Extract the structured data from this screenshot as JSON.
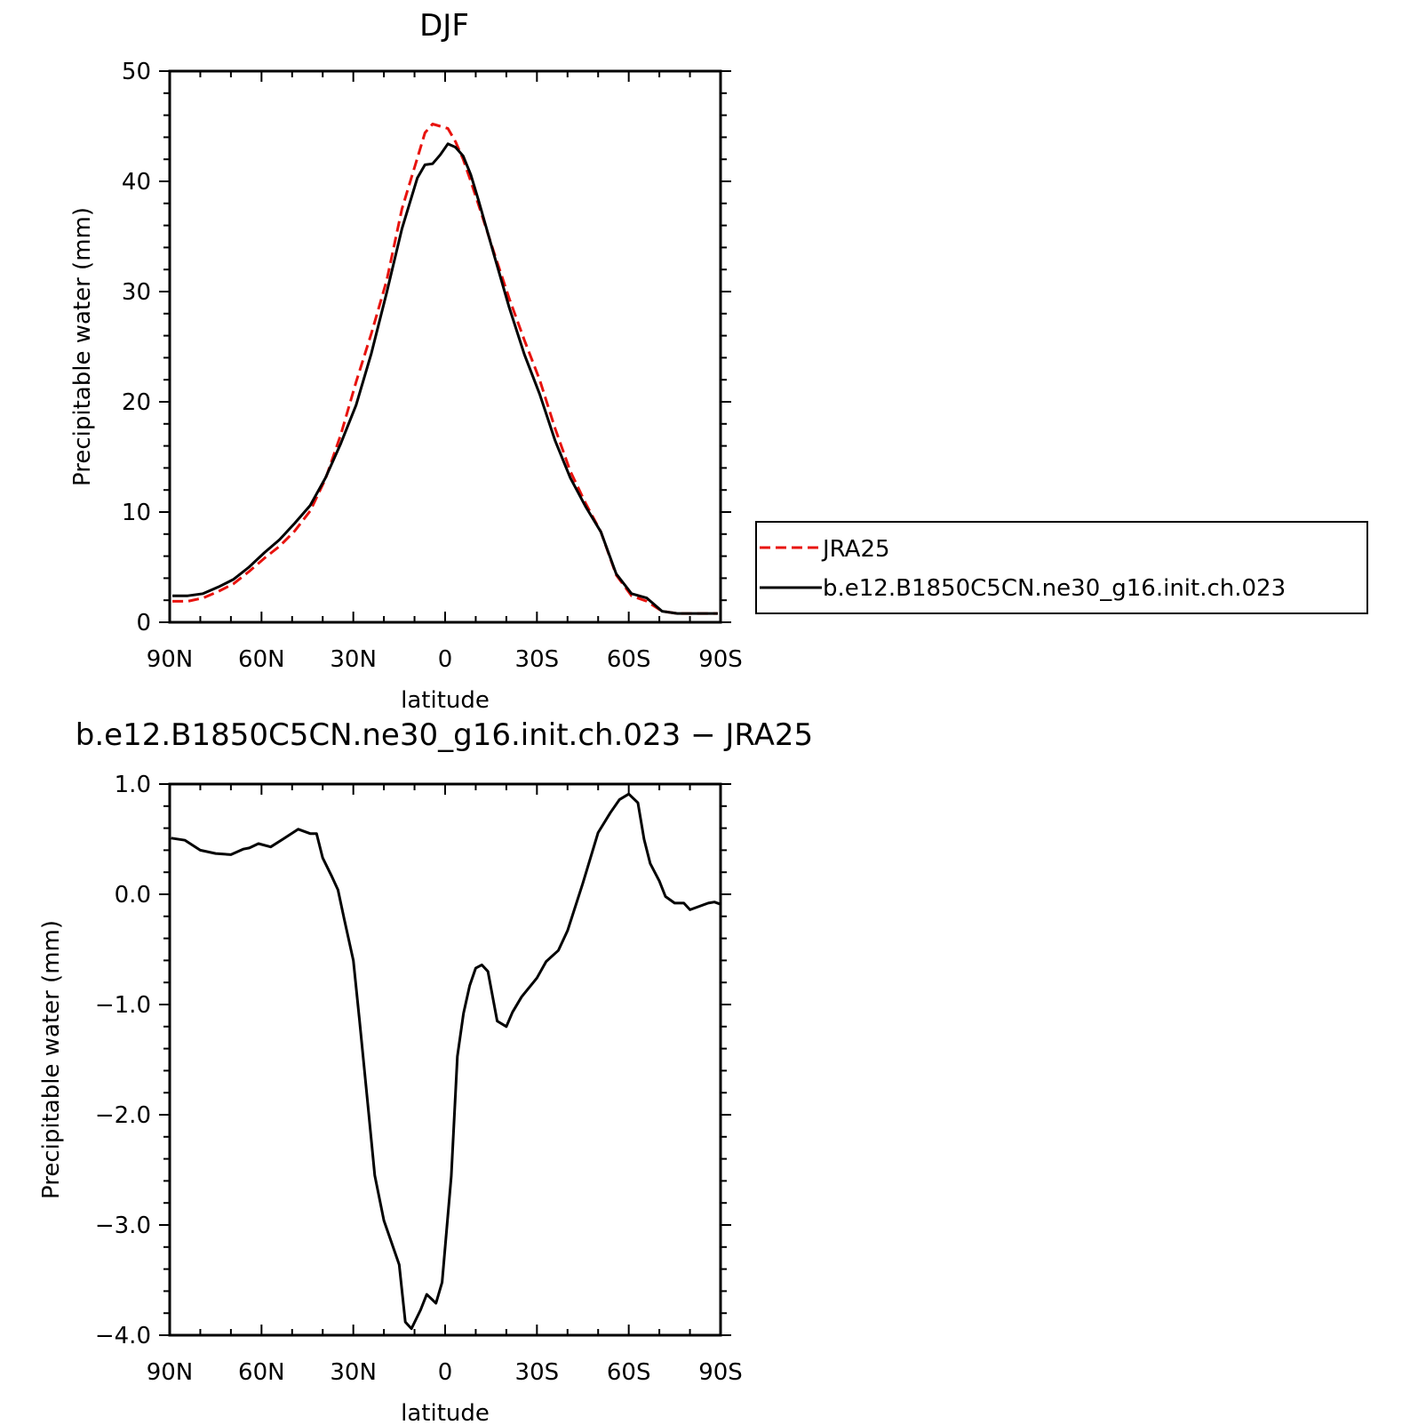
{
  "chart_data": [
    {
      "type": "line",
      "title": "DJF",
      "xlabel": "latitude",
      "ylabel": "Precipitable water (mm)",
      "xlim": [
        90,
        -90
      ],
      "ylim": [
        0,
        50
      ],
      "x_ticks": [
        90,
        60,
        30,
        0,
        -30,
        -60,
        -90
      ],
      "x_tick_labels": [
        "90N",
        "60N",
        "30N",
        "0",
        "30S",
        "60S",
        "90S"
      ],
      "y_ticks": [
        0,
        10,
        20,
        30,
        40,
        50
      ],
      "y_tick_labels": [
        "0",
        "10",
        "20",
        "30",
        "40",
        "50"
      ],
      "grid": false,
      "legend": {
        "placement": "right"
      },
      "x": [
        89.1,
        84.1,
        79.1,
        74.1,
        69.1,
        64.1,
        59.1,
        54.1,
        49.1,
        44.1,
        39.1,
        34.1,
        29.1,
        24.1,
        19.1,
        14.1,
        9.1,
        6.6,
        4.1,
        1.6,
        -0.9,
        -3.4,
        -5.9,
        -8.4,
        -10.9,
        -15.9,
        -20.9,
        -25.9,
        -30.9,
        -35.9,
        -40.9,
        -45.9,
        -50.9,
        -55.9,
        -60.9,
        -65.9,
        -70.9,
        -75.9,
        -80.9,
        -85.9,
        -89.1
      ],
      "series": [
        {
          "name": "JRA25",
          "color": "#e8130e",
          "dash": "dashed",
          "values": [
            1.9,
            1.9,
            2.2,
            2.8,
            3.5,
            4.6,
            5.8,
            6.9,
            8.3,
            10.1,
            13.0,
            17.0,
            21.8,
            26.2,
            31.0,
            37.5,
            42.1,
            44.4,
            45.2,
            45.0,
            44.8,
            43.6,
            42.0,
            40.0,
            37.9,
            33.6,
            29.4,
            25.6,
            22.0,
            17.6,
            13.7,
            10.8,
            8.2,
            4.3,
            2.4,
            1.9,
            1.0,
            0.8,
            0.8,
            0.8,
            0.8
          ]
        },
        {
          "name": "b.e12.B1850C5CN.ne30_g16.init.ch.023",
          "color": "#000000",
          "dash": "solid",
          "values": [
            2.4,
            2.4,
            2.6,
            3.2,
            3.9,
            5.0,
            6.3,
            7.5,
            9.0,
            10.6,
            13.1,
            16.2,
            19.7,
            24.4,
            29.9,
            35.7,
            40.3,
            41.5,
            41.6,
            42.4,
            43.4,
            43.1,
            42.3,
            40.6,
            38.3,
            33.4,
            28.6,
            24.3,
            20.7,
            16.5,
            13.1,
            10.5,
            8.2,
            4.4,
            2.6,
            2.2,
            1.0,
            0.8,
            0.8,
            0.8,
            0.8
          ]
        }
      ]
    },
    {
      "type": "line",
      "title": "b.e12.B1850C5CN.ne30_g16.init.ch.023 − JRA25",
      "xlabel": "latitude",
      "ylabel": "Precipitable water (mm)",
      "xlim": [
        90,
        -90
      ],
      "ylim": [
        -4.0,
        1.0
      ],
      "x_ticks": [
        90,
        60,
        30,
        0,
        -30,
        -60,
        -90
      ],
      "x_tick_labels": [
        "90N",
        "60N",
        "30N",
        "0",
        "30S",
        "60S",
        "90S"
      ],
      "y_ticks": [
        1.0,
        0.0,
        -1.0,
        -2.0,
        -3.0,
        -4.0
      ],
      "y_tick_labels": [
        "1.0",
        "0.0",
        "−1.0",
        "−2.0",
        "−3.0",
        "−4.0"
      ],
      "grid": false,
      "x": [
        89.5,
        85,
        80,
        75,
        70,
        66,
        64,
        61,
        57,
        53,
        48,
        44,
        42,
        40,
        37,
        35,
        33,
        30,
        28,
        25,
        23,
        20,
        18,
        15,
        13,
        11,
        8,
        6,
        3,
        1,
        -2,
        -4,
        -6,
        -8,
        -10,
        -12,
        -14,
        -17,
        -20,
        -22,
        -25,
        -30,
        -33,
        -37,
        -40,
        -45,
        -50,
        -54,
        -57,
        -60,
        -63,
        -65,
        -67,
        -70,
        -72,
        -75,
        -78,
        -80,
        -83,
        -86,
        -88,
        -90
      ],
      "series": [
        {
          "name": "",
          "color": "#000000",
          "dash": "solid",
          "values": [
            0.51,
            0.49,
            0.4,
            0.37,
            0.36,
            0.41,
            0.42,
            0.46,
            0.43,
            0.5,
            0.59,
            0.55,
            0.55,
            0.33,
            0.16,
            0.04,
            -0.22,
            -0.6,
            -1.14,
            -1.98,
            -2.55,
            -2.96,
            -3.12,
            -3.36,
            -3.88,
            -3.94,
            -3.77,
            -3.63,
            -3.71,
            -3.52,
            -2.56,
            -1.47,
            -1.08,
            -0.83,
            -0.67,
            -0.64,
            -0.7,
            -1.15,
            -1.2,
            -1.07,
            -0.93,
            -0.76,
            -0.61,
            -0.51,
            -0.33,
            0.1,
            0.56,
            0.74,
            0.86,
            0.91,
            0.83,
            0.5,
            0.28,
            0.12,
            -0.02,
            -0.08,
            -0.08,
            -0.14,
            -0.11,
            -0.08,
            -0.07,
            -0.09
          ]
        }
      ]
    }
  ]
}
